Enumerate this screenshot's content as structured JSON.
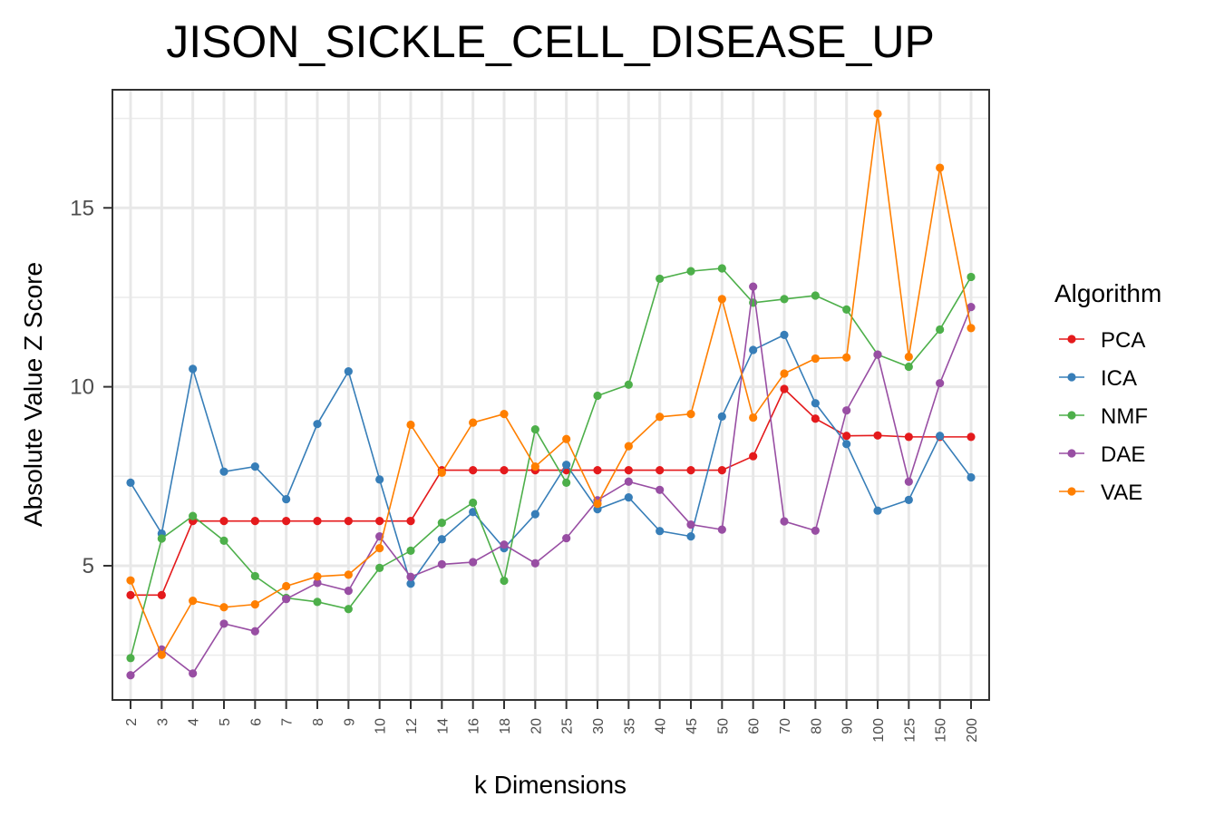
{
  "chart_data": {
    "type": "line",
    "title": "JISON_SICKLE_CELL_DISEASE_UP",
    "xlabel": "k Dimensions",
    "ylabel": "Absolute Value Z Score",
    "categories": [
      "2",
      "3",
      "4",
      "5",
      "6",
      "7",
      "8",
      "9",
      "10",
      "12",
      "14",
      "16",
      "18",
      "20",
      "25",
      "30",
      "35",
      "40",
      "45",
      "50",
      "60",
      "70",
      "80",
      "90",
      "100",
      "125",
      "150",
      "200"
    ],
    "ylim": [
      1.25,
      18.3
    ],
    "yticks": [
      5,
      10,
      15
    ],
    "grid": true,
    "legend": {
      "title": "Algorithm",
      "position": "right"
    },
    "series": [
      {
        "name": "PCA",
        "color": "#e41a1c",
        "values": [
          4.18,
          4.18,
          6.25,
          6.25,
          6.25,
          6.25,
          6.25,
          6.25,
          6.25,
          6.25,
          7.67,
          7.67,
          7.67,
          7.67,
          7.67,
          7.67,
          7.67,
          7.67,
          7.67,
          7.67,
          8.06,
          9.94,
          9.11,
          8.63,
          8.64,
          8.6,
          8.6,
          8.6
        ]
      },
      {
        "name": "ICA",
        "color": "#377eb8",
        "values": [
          7.32,
          5.9,
          10.5,
          7.63,
          7.77,
          6.86,
          8.96,
          10.43,
          7.41,
          4.5,
          5.74,
          6.5,
          5.49,
          6.44,
          7.82,
          6.58,
          6.91,
          5.97,
          5.82,
          9.17,
          11.03,
          11.45,
          9.54,
          8.4,
          6.54,
          6.84,
          8.63,
          7.47
        ]
      },
      {
        "name": "NMF",
        "color": "#4daf4a",
        "values": [
          2.42,
          5.76,
          6.39,
          5.7,
          4.71,
          4.1,
          3.99,
          3.79,
          4.94,
          5.42,
          6.2,
          6.76,
          4.58,
          8.81,
          7.32,
          9.75,
          10.06,
          13.02,
          13.23,
          13.31,
          12.35,
          12.45,
          12.55,
          12.16,
          10.9,
          10.56,
          11.6,
          13.07
        ]
      },
      {
        "name": "DAE",
        "color": "#984ea3",
        "values": [
          1.94,
          2.66,
          1.99,
          3.38,
          3.17,
          4.07,
          4.52,
          4.3,
          5.82,
          4.69,
          5.04,
          5.1,
          5.59,
          5.07,
          5.77,
          6.83,
          7.35,
          7.12,
          6.15,
          6.01,
          12.8,
          6.24,
          5.98,
          9.34,
          10.9,
          7.35,
          10.1,
          12.23
        ]
      },
      {
        "name": "VAE",
        "color": "#ff7f00",
        "values": [
          4.59,
          2.51,
          4.02,
          3.84,
          3.92,
          4.43,
          4.7,
          4.75,
          5.49,
          8.94,
          7.6,
          9.0,
          9.24,
          7.77,
          8.54,
          6.73,
          8.34,
          9.16,
          9.24,
          12.45,
          9.14,
          10.37,
          10.79,
          10.82,
          17.63,
          10.84,
          16.12,
          11.64
        ]
      }
    ]
  }
}
